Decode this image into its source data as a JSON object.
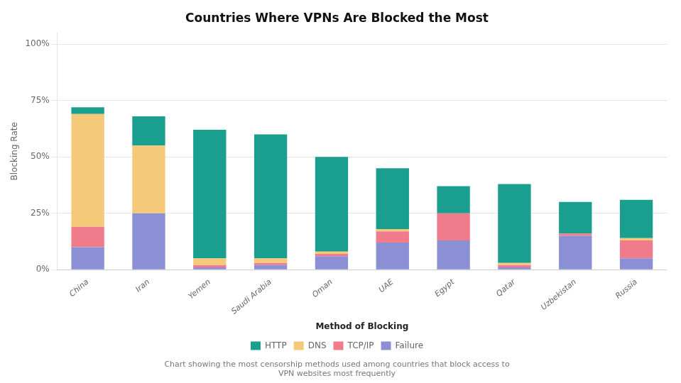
{
  "chart_data": {
    "type": "bar",
    "stacked": true,
    "title": "Countries Where VPNs Are Blocked the Most",
    "subtitle": "Chart showing the most censorship methods used among countries that block access to\nVPN websites most frequently",
    "xlabel": "Method of Blocking",
    "ylabel": "Blocking Rate",
    "categories": [
      "China",
      "Iran",
      "Yemen",
      "Saudi Arabia",
      "Oman",
      "UAE",
      "Egypt",
      "Qatar",
      "Uzbekistan",
      "Russia"
    ],
    "series": [
      {
        "name": "Failure",
        "color": "#8b8fd4",
        "values": [
          10,
          25,
          1,
          2,
          6,
          12,
          13,
          1,
          15,
          5
        ]
      },
      {
        "name": "TCP/IP",
        "color": "#f07b8a",
        "values": [
          9,
          0,
          1,
          1,
          1,
          5,
          12,
          1,
          1,
          8
        ]
      },
      {
        "name": "DNS",
        "color": "#f5c97a",
        "values": [
          50,
          30,
          3,
          2,
          1,
          1,
          0,
          1,
          0,
          1
        ]
      },
      {
        "name": "HTTP",
        "color": "#1a9e8f",
        "values": [
          3,
          13,
          57,
          55,
          42,
          27,
          12,
          35,
          14,
          17
        ]
      }
    ],
    "ylim": [
      0,
      105
    ],
    "yticks": [
      {
        "value": 0,
        "label": "0%"
      },
      {
        "value": 25,
        "label": "25%"
      },
      {
        "value": 50,
        "label": "50%"
      },
      {
        "value": 75,
        "label": "75%"
      },
      {
        "value": 100,
        "label": "100%"
      }
    ],
    "grid": true,
    "legend": "bottom"
  }
}
